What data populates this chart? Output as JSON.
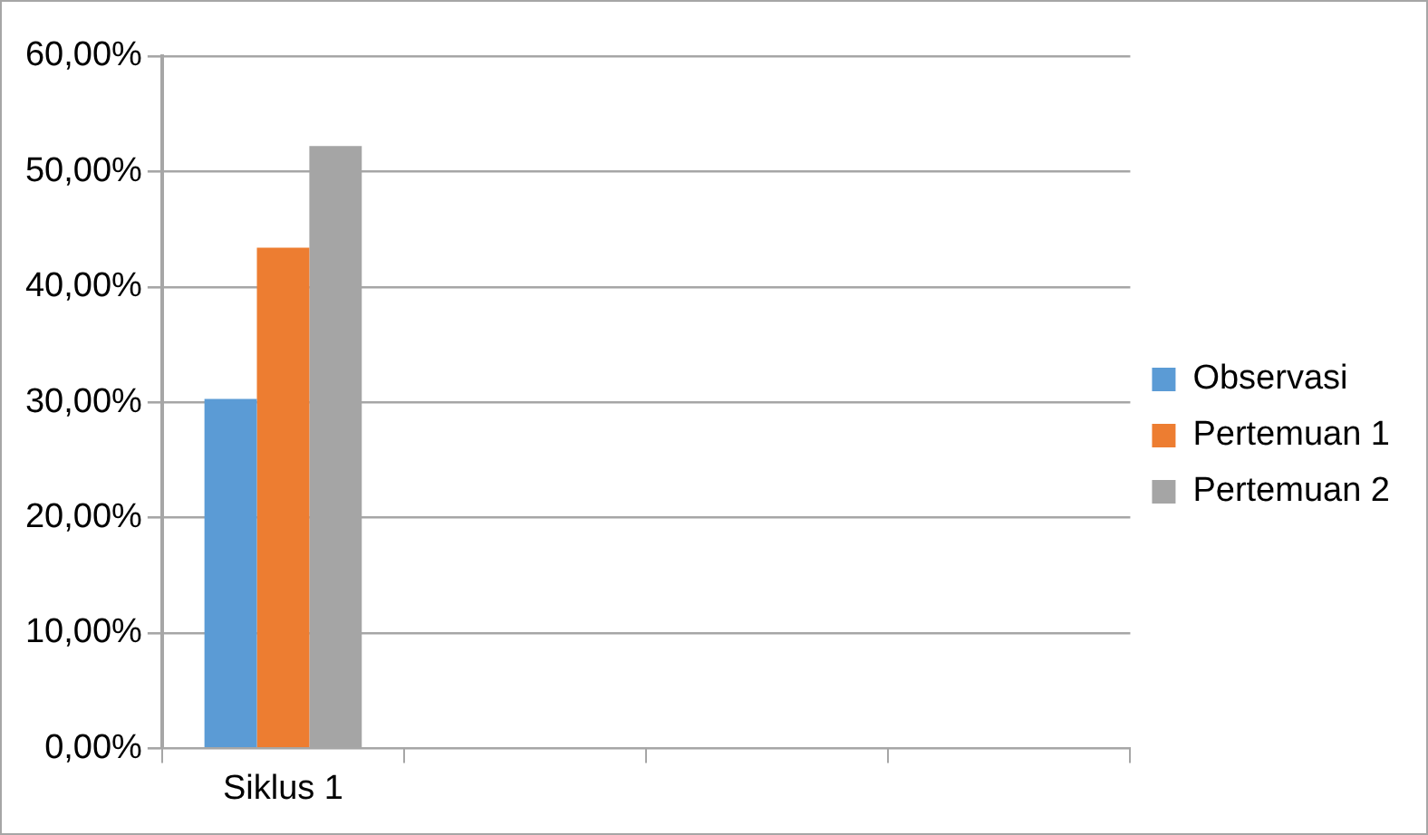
{
  "chart_data": {
    "type": "bar",
    "categories": [
      "Siklus 1",
      null,
      null,
      null
    ],
    "series": [
      {
        "name": "Observasi",
        "color": "#5b9bd5",
        "values": [
          30.3,
          null,
          null,
          null
        ]
      },
      {
        "name": "Pertemuan 1",
        "color": "#ed7d31",
        "values": [
          43.4,
          null,
          null,
          null
        ]
      },
      {
        "name": "Pertemuan 2",
        "color": "#a5a5a5",
        "values": [
          52.2,
          null,
          null,
          null
        ]
      }
    ],
    "ylim": [
      0,
      60
    ],
    "yticks": [
      {
        "value": 0,
        "label": "0,00%"
      },
      {
        "value": 10,
        "label": "10,00%"
      },
      {
        "value": 20,
        "label": "20,00%"
      },
      {
        "value": 30,
        "label": "30,00%"
      },
      {
        "value": 40,
        "label": "40,00%"
      },
      {
        "value": 50,
        "label": "50,00%"
      },
      {
        "value": 60,
        "label": "60,00%"
      }
    ],
    "grid": "y",
    "legend": "right"
  }
}
